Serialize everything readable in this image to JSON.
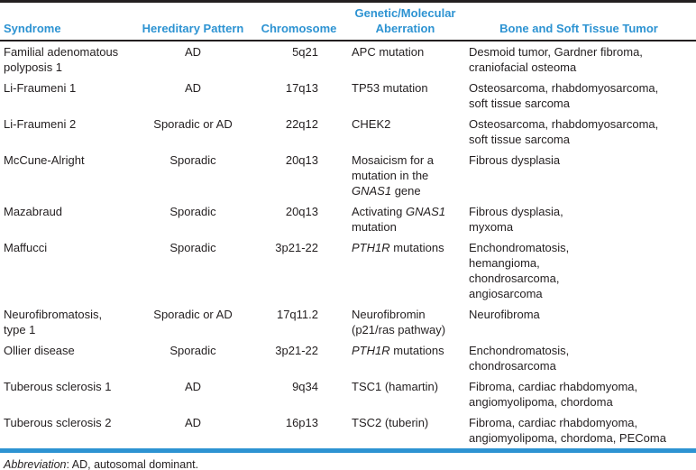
{
  "colors": {
    "header_blue": "#2d93d2",
    "rule_black": "#231f20",
    "text_black": "#231f20",
    "background": "#ffffff"
  },
  "table": {
    "columns": [
      {
        "key": "syndrome",
        "label": "Syndrome"
      },
      {
        "key": "hereditary_pattern",
        "label": "Hereditary Pattern"
      },
      {
        "key": "chromosome",
        "label": "Chromosome"
      },
      {
        "key": "aberration",
        "label": "Genetic/Molecular\nAberration"
      },
      {
        "key": "tumor",
        "label": "Bone and Soft Tissue Tumor"
      }
    ],
    "rows": [
      {
        "syndrome": "Familial adenomatous\npolyposis 1",
        "hereditary_pattern": "AD",
        "chromosome": "5q21",
        "aberration": "APC mutation",
        "tumor": "Desmoid tumor, Gardner fibroma,\ncraniofacial osteoma"
      },
      {
        "syndrome": "Li-Fraumeni 1",
        "hereditary_pattern": "AD",
        "chromosome": "17q13",
        "aberration": "TP53 mutation",
        "tumor": "Osteosarcoma, rhabdomyosarcoma,\nsoft tissue sarcoma"
      },
      {
        "syndrome": "Li-Fraumeni 2",
        "hereditary_pattern": "Sporadic or AD",
        "chromosome": "22q12",
        "aberration": "CHEK2",
        "tumor": "Osteosarcoma, rhabdomyosarcoma,\nsoft tissue sarcoma"
      },
      {
        "syndrome": "McCune-Alright",
        "hereditary_pattern": "Sporadic",
        "chromosome": "20q13",
        "aberration": [
          {
            "t": "Mosaicism for a\nmutation in the\n"
          },
          {
            "t": "GNAS1",
            "i": true
          },
          {
            "t": " gene"
          }
        ],
        "tumor": "Fibrous dysplasia"
      },
      {
        "syndrome": "Mazabraud",
        "hereditary_pattern": "Sporadic",
        "chromosome": "20q13",
        "aberration": [
          {
            "t": "Activating "
          },
          {
            "t": "GNAS1",
            "i": true
          },
          {
            "t": "\nmutation"
          }
        ],
        "tumor": "Fibrous dysplasia,\nmyxoma"
      },
      {
        "syndrome": "Maffucci",
        "hereditary_pattern": "Sporadic",
        "chromosome": "3p21-22",
        "aberration": [
          {
            "t": "PTH1R",
            "i": true
          },
          {
            "t": " mutations"
          }
        ],
        "tumor": "Enchondromatosis,\nhemangioma,\nchondrosarcoma,\nangiosarcoma"
      },
      {
        "syndrome": "Neurofibromatosis,\ntype 1",
        "hereditary_pattern": "Sporadic or AD",
        "chromosome": "17q11.2",
        "aberration": "Neurofibromin\n(p21/ras pathway)",
        "tumor": "Neurofibroma"
      },
      {
        "syndrome": "Ollier disease",
        "hereditary_pattern": "Sporadic",
        "chromosome": "3p21-22",
        "aberration": [
          {
            "t": "PTH1R",
            "i": true
          },
          {
            "t": " mutations"
          }
        ],
        "tumor": "Enchondromatosis,\nchondrosarcoma"
      },
      {
        "syndrome": "Tuberous sclerosis 1",
        "hereditary_pattern": "AD",
        "chromosome": "9q34",
        "aberration": "TSC1 (hamartin)",
        "tumor": "Fibroma, cardiac rhabdomyoma,\nangiomyolipoma, chordoma"
      },
      {
        "syndrome": "Tuberous sclerosis 2",
        "hereditary_pattern": "AD",
        "chromosome": "16p13",
        "aberration": "TSC2 (tuberin)",
        "tumor": "Fibroma, cardiac rhabdomyoma,\nangiomyolipoma, chordoma, PEComa"
      }
    ]
  },
  "footnote": {
    "label": "Abbreviation",
    "text": ": AD, autosomal dominant."
  }
}
